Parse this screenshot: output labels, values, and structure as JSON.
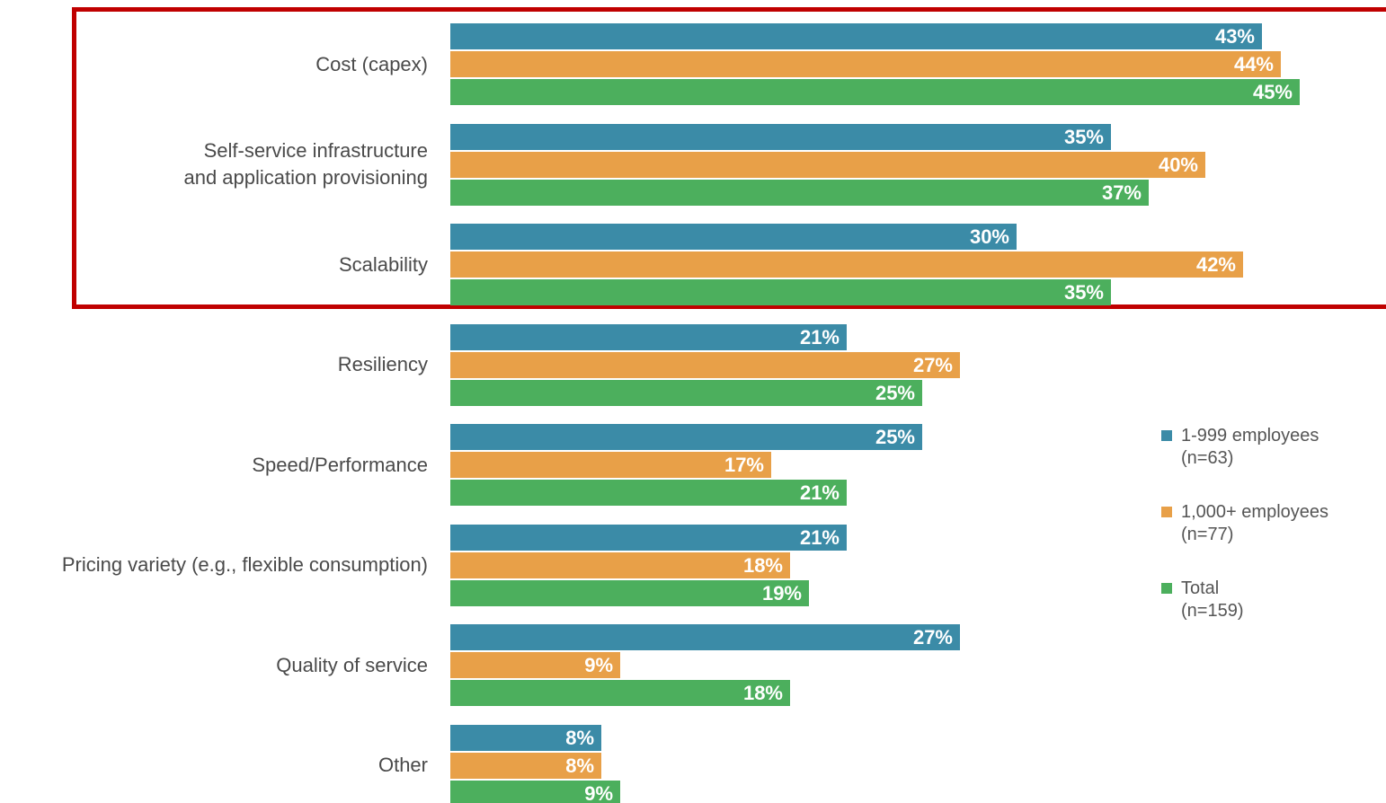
{
  "chart_data": {
    "type": "bar",
    "orientation": "horizontal",
    "categories": [
      "Cost (capex)",
      "Self-service infrastructure\nand application provisioning",
      "Scalability",
      "Resiliency",
      "Speed/Performance",
      "Pricing variety (e.g., flexible consumption)",
      "Quality of service",
      "Other"
    ],
    "series": [
      {
        "name": "1-999 employees\n(n=63)",
        "color": "#3b8ba7",
        "values": [
          43,
          35,
          30,
          21,
          25,
          21,
          27,
          8
        ],
        "value_labels": [
          "43%",
          "35%",
          "30%",
          "21%",
          "25%",
          "21%",
          "27%",
          "8%"
        ]
      },
      {
        "name": "1,000+ employees\n(n=77)",
        "color": "#e8a048",
        "values": [
          44,
          40,
          42,
          27,
          17,
          18,
          9,
          8
        ],
        "value_labels": [
          "44%",
          "40%",
          "42%",
          "27%",
          "17%",
          "18%",
          "9%",
          "8%"
        ]
      },
      {
        "name": "Total\n(n=159)",
        "color": "#4caf5d",
        "values": [
          45,
          37,
          35,
          25,
          21,
          19,
          18,
          9
        ],
        "value_labels": [
          "45%",
          "37%",
          "35%",
          "25%",
          "21%",
          "19%",
          "18%",
          "9%"
        ]
      }
    ],
    "legend": "right"
  }
}
